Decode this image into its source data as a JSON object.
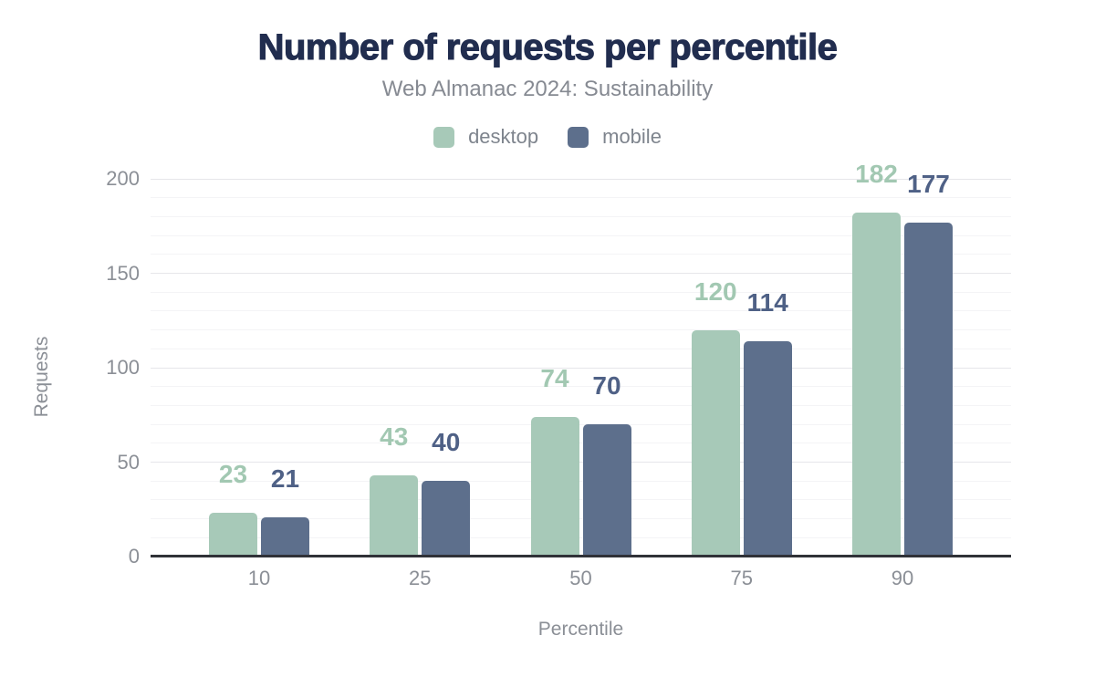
{
  "chart_data": {
    "type": "bar",
    "title": "Number of requests per percentile",
    "subtitle": "Web Almanac 2024: Sustainability",
    "categories": [
      "10",
      "25",
      "50",
      "75",
      "90"
    ],
    "series": [
      {
        "name": "desktop",
        "values": [
          23,
          43,
          74,
          120,
          182
        ],
        "bar_color": "#a7c9b8",
        "label_color": "#a2c8b2"
      },
      {
        "name": "mobile",
        "values": [
          21,
          40,
          70,
          114,
          177
        ],
        "bar_color": "#5d6f8c",
        "label_color": "#4f6186"
      }
    ],
    "xlabel": "Percentile",
    "ylabel": "Requests",
    "ylim": [
      0,
      200
    ],
    "yticks": [
      0,
      50,
      100,
      150,
      200
    ],
    "minor_tick_step": 10,
    "grid": "on",
    "legend_position": "top",
    "colors": {
      "title": "#212d4f",
      "subtitle": "#868a92",
      "axis_text": "#8b8f96",
      "legend_text": "#7e848d",
      "grid_major": "#e6e6ea",
      "grid_minor": "#f4f4f6",
      "axis_line": "#303238",
      "background": "#ffffff"
    }
  }
}
